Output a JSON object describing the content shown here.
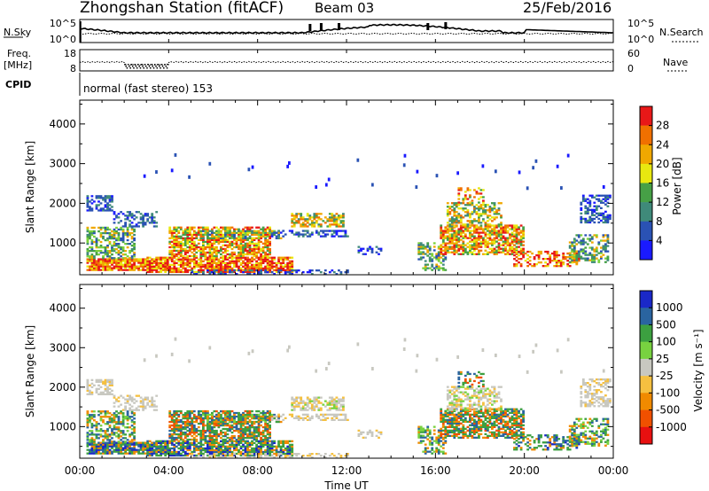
{
  "header": {
    "station": "Zhongshan Station (fitACF)",
    "beam": "Beam 03",
    "date": "25/Feb/2016"
  },
  "noise_panel": {
    "left_label": "N.Sky",
    "left_ticks": [
      "10^5",
      "10^0"
    ],
    "right_ticks": [
      "10^5",
      "10^0"
    ],
    "right_label": "N.Search"
  },
  "freq_panel": {
    "left_label_1": "Freq.",
    "left_label_2": "[MHz]",
    "left_ticks": [
      "18",
      "8"
    ],
    "right_ticks": [
      "60",
      "0"
    ],
    "right_label": "Nave"
  },
  "cpid": {
    "label": "CPID",
    "text": "normal (fast stereo) 153"
  },
  "colors": {
    "power": [
      "#1a1aff",
      "#2a52b4",
      "#3f8a7a",
      "#46a046",
      "#7cd23a",
      "#e8e810",
      "#f0a800",
      "#f07000",
      "#e81818"
    ],
    "velocity": [
      "#e81010",
      "#f05000",
      "#f08a00",
      "#f5c040",
      "#c8c8c0",
      "#78d240",
      "#3ca040",
      "#2a64a0",
      "#1a28c8"
    ]
  },
  "chart_data": [
    {
      "type": "heatmap",
      "ylabel": "Slant Range [km]",
      "xlabel": "",
      "x_ticks": [
        "00:00",
        "04:00",
        "08:00",
        "12:00",
        "16:00",
        "20:00",
        "00:00"
      ],
      "y_ticks": [
        "1000",
        "2000",
        "3000",
        "4000"
      ],
      "ylim": [
        200,
        4600
      ],
      "colorbar": {
        "label": "Power [dB]",
        "ticks": [
          "4",
          "8",
          "12",
          "16",
          "20",
          "24",
          "28"
        ]
      }
    },
    {
      "type": "heatmap",
      "ylabel": "Slant Range [km]",
      "xlabel": "Time UT",
      "x_ticks": [
        "00:00",
        "04:00",
        "08:00",
        "12:00",
        "16:00",
        "20:00",
        "00:00"
      ],
      "y_ticks": [
        "1000",
        "2000",
        "3000",
        "4000"
      ],
      "ylim": [
        200,
        4600
      ],
      "colorbar": {
        "label": "Velocity [m s⁻¹]",
        "ticks": [
          "1000",
          "500",
          "100",
          "25",
          "-25",
          "-100",
          "-500",
          "-1000"
        ]
      }
    }
  ]
}
